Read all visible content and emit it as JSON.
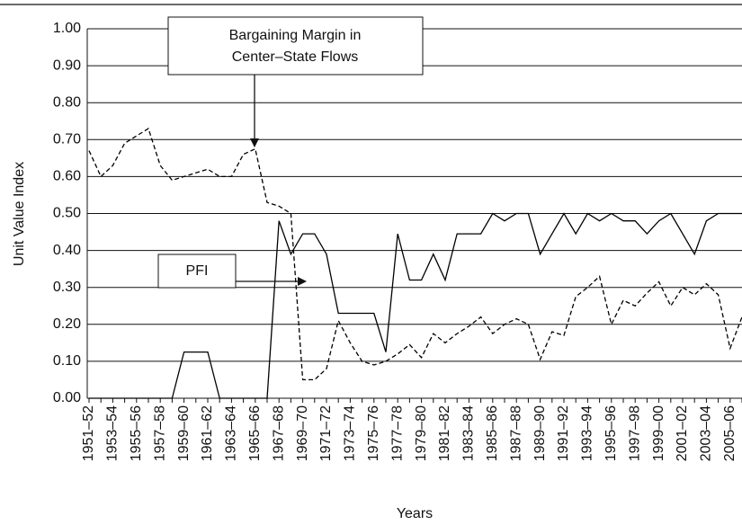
{
  "chart_data": {
    "type": "line",
    "x_label": "Years",
    "y_label": "Unit Value Index",
    "categories": [
      "1951–52",
      null,
      "1953–54",
      null,
      "1955–56",
      null,
      "1957–58",
      null,
      "1959–60",
      null,
      "1961–62",
      null,
      "1963–64",
      null,
      "1965–66",
      null,
      "1967–68",
      null,
      "1969–70",
      null,
      "1971–72",
      null,
      "1973–74",
      null,
      "1975–76",
      null,
      "1977–78",
      null,
      "1979–80",
      null,
      "1981–82",
      null,
      "1983–84",
      null,
      "1985–86",
      null,
      "1987–88",
      null,
      "1989–90",
      null,
      "1991–92",
      null,
      "1993–94",
      null,
      "1995–96",
      null,
      "1997–98",
      null,
      "1999–00",
      null,
      "2001–02",
      null,
      "2003–04",
      null,
      "2005–06",
      null
    ],
    "series": [
      {
        "color": "#000000",
        "dash": "solid",
        "values": [
          0,
          0,
          0,
          0,
          0,
          0,
          0,
          0,
          0.125,
          0.125,
          0.125,
          0,
          0,
          0,
          0,
          0,
          0.48,
          0.39,
          0.445,
          0.445,
          0.39,
          0.23,
          0.23,
          0.23,
          0.23,
          0.125,
          0.445,
          0.32,
          0.32,
          0.39,
          0.32,
          0.445,
          0.445,
          0.445,
          0.5,
          0.48,
          0.5,
          0.5,
          0.39,
          0.445,
          0.5,
          0.445,
          0.5,
          0.48,
          0.5,
          0.48,
          0.48,
          0.445,
          0.48,
          0.5,
          0.445,
          0.39,
          0.48,
          0.5,
          0.5,
          0.5
        ]
      },
      {
        "color": "#000000",
        "dash": "dashed",
        "values": [
          0.67,
          0.6,
          0.63,
          0.69,
          0.71,
          0.73,
          0.63,
          0.59,
          0.6,
          0.61,
          0.62,
          0.6,
          0.6,
          0.66,
          0.675,
          0.53,
          0.52,
          0.5,
          0.05,
          0.05,
          0.08,
          0.21,
          0.15,
          0.1,
          0.09,
          0.1,
          0.12,
          0.145,
          0.11,
          0.175,
          0.15,
          0.175,
          0.195,
          0.22,
          0.175,
          0.2,
          0.215,
          0.2,
          0.105,
          0.18,
          0.17,
          0.275,
          0.3,
          0.33,
          0.2,
          0.265,
          0.25,
          0.285,
          0.315,
          0.25,
          0.3,
          0.28,
          0.31,
          0.28,
          0.135,
          0.22
        ]
      }
    ],
    "ylim": [
      0,
      1
    ],
    "yticks": [
      {
        "value": 0,
        "label": "0.00"
      },
      {
        "value": 0.1,
        "label": "0.10"
      },
      {
        "value": 0.2,
        "label": "0.20"
      },
      {
        "value": 0.3,
        "label": "0.30"
      },
      {
        "value": 0.4,
        "label": "0.40"
      },
      {
        "value": 0.5,
        "label": "0.50"
      },
      {
        "value": 0.6,
        "label": "0.60"
      },
      {
        "value": 0.7,
        "label": "0.70"
      },
      {
        "value": 0.8,
        "label": "0.80"
      },
      {
        "value": 0.9,
        "label": "0.90"
      },
      {
        "value": 1,
        "label": "1.00"
      }
    ],
    "grid": true,
    "annotations": [
      {
        "lines": [
          "Bargaining Margin in",
          "Center–State Flows"
        ]
      },
      {
        "lines": [
          "PFI"
        ]
      }
    ]
  }
}
